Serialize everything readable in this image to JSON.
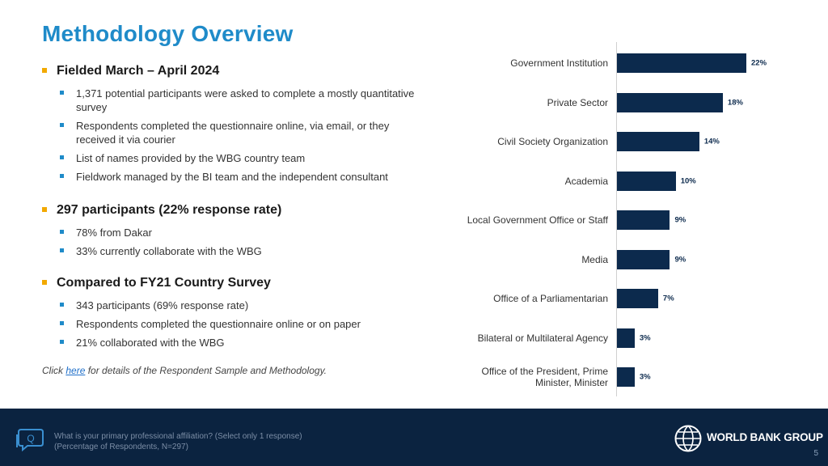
{
  "title": "Methodology Overview",
  "sections": [
    {
      "heading": "Fielded March – April 2024",
      "items": [
        "1,371 potential participants were asked to complete a mostly quantitative survey",
        "Respondents completed the questionnaire online, via email, or they received it via courier",
        "List of names provided by the WBG country team",
        "Fieldwork managed by the BI team and the independent consultant"
      ]
    },
    {
      "heading": "297 participants (22% response rate)",
      "items": [
        "78% from Dakar",
        "33% currently collaborate with the WBG"
      ]
    },
    {
      "heading": "Compared to FY21 Country Survey",
      "items": [
        "343 participants (69% response rate)",
        "Respondents completed the questionnaire online or on paper",
        "21% collaborated with the WBG"
      ]
    }
  ],
  "note": {
    "prefix": "Click ",
    "link": "here",
    "suffix": " for details of the Respondent Sample and Methodology."
  },
  "chart_data": {
    "type": "bar",
    "orientation": "horizontal",
    "title": "",
    "categories": [
      "Government Institution",
      "Private Sector",
      "Civil Society Organization",
      "Academia",
      "Local Government Office or Staff",
      "Media",
      "Office of a Parliamentarian",
      "Bilateral or Multilateral Agency",
      "Office of the President, Prime Minister, Minister"
    ],
    "values": [
      22,
      18,
      14,
      10,
      9,
      9,
      7,
      3,
      3
    ],
    "value_labels": [
      "22%",
      "18%",
      "14%",
      "10%",
      "9%",
      "9%",
      "7%",
      "3%",
      "3%"
    ],
    "xlim": [
      0,
      25
    ],
    "unit": "%",
    "color": "#0c2a4d"
  },
  "footer": {
    "question": "What is your primary professional affiliation?  (Select only 1 response)",
    "base": "(Percentage of Respondents, N=297)",
    "brand": "WORLD BANK GROUP",
    "page": "5",
    "icon_letter": "Q"
  },
  "colors": {
    "title": "#1f8bc9",
    "accent_bullet": "#f2a900",
    "sub_bullet": "#1f8bc9",
    "footer_bg": "#0b2340"
  }
}
